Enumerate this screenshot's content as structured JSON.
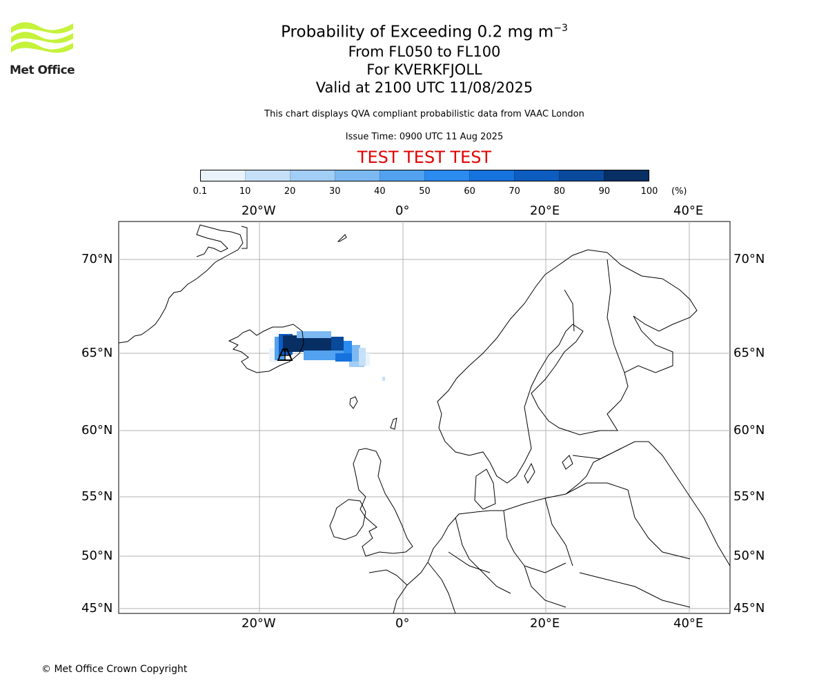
{
  "header": {
    "logo_text": "Met Office",
    "title_main": "Probability of Exceeding 0.2 mg m",
    "title_sup": "−3",
    "title_levels": "From FL050 to FL100",
    "title_volcano": "For KVERKFJOLL",
    "title_valid": "Valid at 2100 UTC 11/08/2025",
    "note": "This chart displays QVA compliant probabilistic data from VAAC London",
    "issue_time": "Issue Time: 0900 UTC 11 Aug 2025",
    "test_banner": "TEST TEST TEST"
  },
  "colorbar": {
    "ticks": [
      "0.1",
      "10",
      "20",
      "30",
      "40",
      "50",
      "60",
      "70",
      "80",
      "90",
      "100"
    ],
    "unit": "(%)",
    "colors": [
      "#eaf3fc",
      "#c6e0f8",
      "#a2cdf5",
      "#7cb9f2",
      "#52a2f0",
      "#2b8bef",
      "#1672dd",
      "#0d5cc0",
      "#0a4a9c",
      "#072f64"
    ]
  },
  "map": {
    "lon_labels": [
      "20°W",
      "0°",
      "20°E",
      "40°E"
    ],
    "lat_labels": [
      "70°N",
      "65°N",
      "60°N",
      "55°N",
      "50°N",
      "45°N"
    ],
    "volcano_name": "KVERKFJOLL"
  },
  "footer": {
    "copyright": "© Met Office Crown Copyright"
  }
}
